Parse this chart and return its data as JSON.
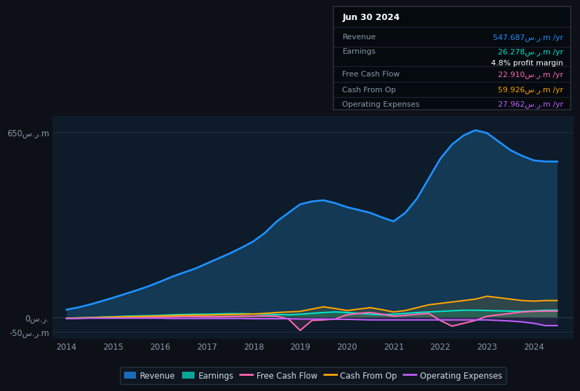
{
  "bg_color": "#0d1117",
  "plot_bg_color": "#0d1b2a",
  "grid_color": "#1e2d3d",
  "title_box": {
    "date": "Jun 30 2024",
    "rows": [
      {
        "label": "Revenue",
        "value": "547.687س.ر.m /yr",
        "value_color": "#1e90ff"
      },
      {
        "label": "Earnings",
        "value": "26.278س.ر.m /yr",
        "value_color": "#00e5cc"
      },
      {
        "label": "",
        "value": "4.8% profit margin",
        "value_color": "#ffffff"
      },
      {
        "label": "Free Cash Flow",
        "value": "22.910س.ر.m /yr",
        "value_color": "#ff69b4"
      },
      {
        "label": "Cash From Op",
        "value": "59.926س.ر.m /yr",
        "value_color": "#ffa500"
      },
      {
        "label": "Operating Expenses",
        "value": "27.962س.ر.m /yr",
        "value_color": "#bf5fff"
      }
    ]
  },
  "x_years": [
    2014.0,
    2014.25,
    2014.5,
    2014.75,
    2015.0,
    2015.25,
    2015.5,
    2015.75,
    2016.0,
    2016.25,
    2016.5,
    2016.75,
    2017.0,
    2017.25,
    2017.5,
    2017.75,
    2018.0,
    2018.25,
    2018.5,
    2018.75,
    2019.0,
    2019.25,
    2019.5,
    2019.75,
    2020.0,
    2020.25,
    2020.5,
    2020.75,
    2021.0,
    2021.25,
    2021.5,
    2021.75,
    2022.0,
    2022.25,
    2022.5,
    2022.75,
    2023.0,
    2023.25,
    2023.5,
    2023.75,
    2024.0,
    2024.25,
    2024.5
  ],
  "revenue": [
    28,
    36,
    46,
    58,
    70,
    83,
    96,
    110,
    126,
    143,
    158,
    172,
    190,
    208,
    226,
    246,
    268,
    298,
    338,
    368,
    398,
    408,
    412,
    402,
    388,
    378,
    368,
    352,
    338,
    368,
    418,
    488,
    558,
    608,
    640,
    658,
    648,
    618,
    588,
    568,
    552,
    548,
    548
  ],
  "earnings": [
    -2,
    -1,
    0,
    2,
    3,
    5,
    6,
    7,
    8,
    10,
    11,
    12,
    12,
    13,
    14,
    14,
    13,
    12,
    11,
    10,
    12,
    15,
    18,
    20,
    18,
    15,
    12,
    10,
    12,
    15,
    18,
    20,
    22,
    24,
    26,
    26,
    25,
    24,
    23,
    22,
    24,
    26,
    26
  ],
  "free_cash_flow": [
    -3,
    -2,
    -1,
    0,
    1,
    2,
    3,
    2,
    2,
    3,
    4,
    4,
    3,
    3,
    4,
    5,
    5,
    6,
    5,
    -5,
    -45,
    -10,
    -8,
    -5,
    10,
    15,
    18,
    12,
    5,
    8,
    12,
    15,
    -10,
    -30,
    -20,
    -10,
    5,
    10,
    15,
    20,
    22,
    23,
    23
  ],
  "cash_from_op": [
    -2,
    -1,
    0,
    1,
    2,
    3,
    4,
    5,
    6,
    7,
    8,
    9,
    9,
    10,
    11,
    12,
    13,
    15,
    18,
    20,
    22,
    30,
    38,
    32,
    25,
    30,
    35,
    28,
    20,
    25,
    35,
    45,
    50,
    55,
    60,
    65,
    75,
    70,
    65,
    60,
    58,
    60,
    60
  ],
  "operating_expenses": [
    -3,
    -3,
    -2,
    -2,
    -2,
    -2,
    -2,
    -2,
    -2,
    -3,
    -3,
    -3,
    -3,
    -3,
    -3,
    -3,
    -4,
    -4,
    -4,
    -4,
    -5,
    -5,
    -5,
    -6,
    -6,
    -7,
    -8,
    -8,
    -8,
    -8,
    -8,
    -8,
    -8,
    -8,
    -8,
    -8,
    -8,
    -10,
    -12,
    -15,
    -20,
    -28,
    -28
  ],
  "ylim": [
    -75,
    710
  ],
  "yticks": [
    -50,
    0,
    650
  ],
  "ytick_labels": [
    "-50س.ر.m",
    "0س.ر.",
    "650س.ر.m"
  ],
  "xtick_years": [
    2014,
    2015,
    2016,
    2017,
    2018,
    2019,
    2020,
    2021,
    2022,
    2023,
    2024
  ],
  "legend_items": [
    {
      "label": "Revenue",
      "color": "#1e90ff",
      "filled": true
    },
    {
      "label": "Earnings",
      "color": "#00e5cc",
      "filled": true
    },
    {
      "label": "Free Cash Flow",
      "color": "#ff69b4",
      "filled": false
    },
    {
      "label": "Cash From Op",
      "color": "#ffa500",
      "filled": false
    },
    {
      "label": "Operating Expenses",
      "color": "#bf5fff",
      "filled": false
    }
  ]
}
